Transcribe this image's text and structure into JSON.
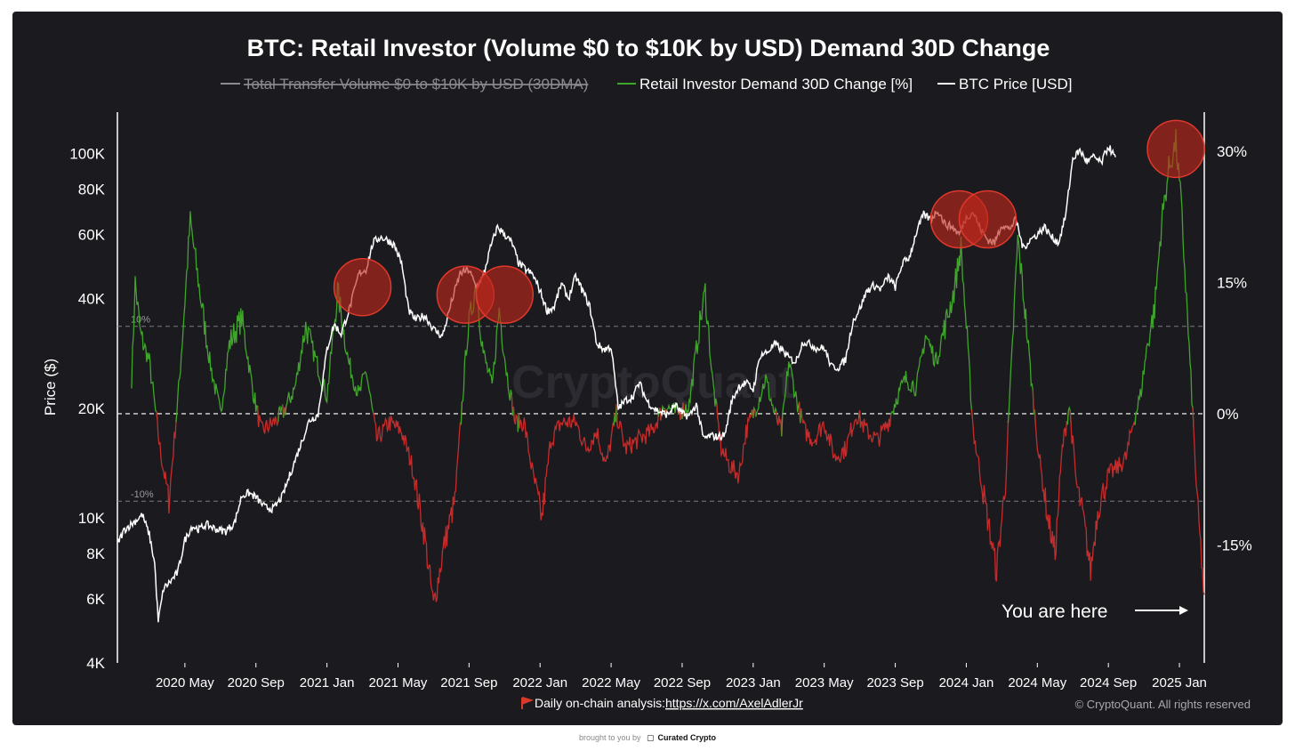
{
  "colors": {
    "background": "#1b1b1f",
    "green": "#3fa52b",
    "red": "#c42c2c",
    "price": "#ffffff",
    "disabled": "#8a8a90",
    "circle_fill": "#c0261c",
    "circle_stroke": "#e0382c"
  },
  "watermark": "CryptoQuant",
  "footer": {
    "flag_icon": "red-flag-icon",
    "label": "Daily on-chain analysis:",
    "link": "https://x.com/AxelAdlerJr",
    "copyright": "© CryptoQuant. All rights reserved"
  },
  "brought_by": {
    "prefix": "brought to you by",
    "logo_icon": "curated-crypto-logo-icon",
    "brand": "Curated Crypto"
  },
  "annotation": {
    "text": "You are here",
    "arrow_icon": "right-arrow-icon"
  },
  "chart_data": {
    "type": "line",
    "title": "BTC: Retail Investor (Volume $0 to $10K by USD) Demand 30D Change",
    "legend": [
      {
        "label": "Total Transfer Volume $0 to $10K by USD (30DMA)",
        "enabled": false
      },
      {
        "label": "Retail Investor Demand 30D Change [%]",
        "enabled": true
      },
      {
        "label": "BTC Price [USD]",
        "enabled": true
      }
    ],
    "ylabel_left": "Price ($)",
    "y_left_ticks": [
      "100K",
      "80K",
      "60K",
      "40K",
      "20K",
      "10K",
      "8K",
      "6K",
      "4K"
    ],
    "y_left_tick_values": [
      100000,
      80000,
      60000,
      40000,
      20000,
      10000,
      8000,
      6000,
      4000
    ],
    "y_left_range": [
      4000,
      130000
    ],
    "y_left_scale": "log",
    "y_right_ticks": [
      "30%",
      "15%",
      "0%",
      "-15%"
    ],
    "y_right_tick_values": [
      30,
      15,
      0,
      -15
    ],
    "y_right_range": [
      -28.5,
      34.5
    ],
    "reference_lines": [
      {
        "value": 10,
        "label": "10%"
      },
      {
        "value": 0,
        "label": ""
      },
      {
        "value": -10,
        "label": "-10%"
      }
    ],
    "x_ticks": [
      "2020 May",
      "2020 Sep",
      "2021 Jan",
      "2021 May",
      "2021 Sep",
      "2022 Jan",
      "2022 May",
      "2022 Sep",
      "2023 Jan",
      "2023 May",
      "2023 Sep",
      "2024 Jan",
      "2024 May",
      "2024 Sep",
      "2025 Jan"
    ],
    "x_tick_months": [
      4,
      8,
      12,
      16,
      20,
      24,
      28,
      32,
      36,
      40,
      44,
      48,
      52,
      56,
      60
    ],
    "x_range_months": [
      0.2,
      61.4
    ],
    "x_origin": "2020 Jan",
    "series": [
      {
        "name": "BTC Price [USD]",
        "axis": "left",
        "points": [
          [
            0.2,
            8500
          ],
          [
            0.6,
            9300
          ],
          [
            1.2,
            9800
          ],
          [
            1.6,
            10200
          ],
          [
            2.0,
            9000
          ],
          [
            2.3,
            7500
          ],
          [
            2.5,
            5200
          ],
          [
            2.8,
            6400
          ],
          [
            3.2,
            6700
          ],
          [
            3.6,
            7100
          ],
          [
            4.0,
            8700
          ],
          [
            4.4,
            9500
          ],
          [
            4.8,
            9300
          ],
          [
            5.2,
            9600
          ],
          [
            5.8,
            9300
          ],
          [
            6.3,
            9200
          ],
          [
            6.8,
            9700
          ],
          [
            7.2,
            11500
          ],
          [
            7.6,
            11700
          ],
          [
            8.0,
            11400
          ],
          [
            8.5,
            10700
          ],
          [
            9.0,
            10600
          ],
          [
            9.5,
            11500
          ],
          [
            10.0,
            13500
          ],
          [
            10.5,
            15800
          ],
          [
            11.0,
            18500
          ],
          [
            11.5,
            19200
          ],
          [
            12.0,
            29000
          ],
          [
            12.4,
            34000
          ],
          [
            12.8,
            32000
          ],
          [
            13.3,
            38000
          ],
          [
            13.8,
            47000
          ],
          [
            14.2,
            48000
          ],
          [
            14.6,
            57000
          ],
          [
            15.0,
            59000
          ],
          [
            15.4,
            58000
          ],
          [
            15.8,
            56000
          ],
          [
            16.2,
            50000
          ],
          [
            16.6,
            37000
          ],
          [
            17.0,
            35000
          ],
          [
            17.5,
            36000
          ],
          [
            18.0,
            33000
          ],
          [
            18.5,
            31500
          ],
          [
            19.0,
            39000
          ],
          [
            19.5,
            47000
          ],
          [
            20.0,
            48000
          ],
          [
            20.4,
            43000
          ],
          [
            20.8,
            46000
          ],
          [
            21.2,
            55000
          ],
          [
            21.6,
            63000
          ],
          [
            22.0,
            60000
          ],
          [
            22.4,
            57000
          ],
          [
            22.8,
            50000
          ],
          [
            23.2,
            48000
          ],
          [
            23.6,
            46500
          ],
          [
            24.0,
            42000
          ],
          [
            24.4,
            37000
          ],
          [
            24.8,
            38000
          ],
          [
            25.2,
            44000
          ],
          [
            25.6,
            40000
          ],
          [
            26.0,
            46000
          ],
          [
            26.4,
            42000
          ],
          [
            26.8,
            38000
          ],
          [
            27.2,
            30000
          ],
          [
            27.6,
            29000
          ],
          [
            28.0,
            29500
          ],
          [
            28.4,
            20000
          ],
          [
            28.8,
            21000
          ],
          [
            29.2,
            21500
          ],
          [
            29.6,
            23500
          ],
          [
            30.0,
            21000
          ],
          [
            30.4,
            20000
          ],
          [
            30.8,
            19500
          ],
          [
            31.2,
            19200
          ],
          [
            31.6,
            20500
          ],
          [
            32.0,
            19300
          ],
          [
            32.4,
            19000
          ],
          [
            32.8,
            20500
          ],
          [
            33.2,
            16500
          ],
          [
            33.6,
            16800
          ],
          [
            34.0,
            16700
          ],
          [
            34.4,
            16900
          ],
          [
            34.8,
            21000
          ],
          [
            35.2,
            23000
          ],
          [
            35.6,
            23500
          ],
          [
            36.0,
            22500
          ],
          [
            36.4,
            28000
          ],
          [
            36.8,
            28500
          ],
          [
            37.2,
            30000
          ],
          [
            37.6,
            29000
          ],
          [
            38.0,
            27500
          ],
          [
            38.4,
            26800
          ],
          [
            38.8,
            30500
          ],
          [
            39.2,
            30000
          ],
          [
            39.6,
            29200
          ],
          [
            40.0,
            29300
          ],
          [
            40.4,
            26000
          ],
          [
            40.8,
            25900
          ],
          [
            41.2,
            27200
          ],
          [
            41.6,
            34500
          ],
          [
            42.0,
            37500
          ],
          [
            42.4,
            42000
          ],
          [
            42.8,
            43500
          ],
          [
            43.2,
            42500
          ],
          [
            43.6,
            46000
          ],
          [
            44.0,
            43000
          ],
          [
            44.4,
            50000
          ],
          [
            44.8,
            52000
          ],
          [
            45.2,
            61000
          ],
          [
            45.6,
            68000
          ],
          [
            46.0,
            66000
          ],
          [
            46.4,
            70000
          ],
          [
            46.8,
            64000
          ],
          [
            47.2,
            63000
          ],
          [
            47.6,
            60000
          ],
          [
            48.0,
            67000
          ],
          [
            48.4,
            69000
          ],
          [
            48.8,
            62000
          ],
          [
            49.2,
            58000
          ],
          [
            49.6,
            57000
          ],
          [
            50.0,
            64000
          ],
          [
            50.4,
            62000
          ],
          [
            50.8,
            66000
          ],
          [
            51.2,
            55000
          ],
          [
            51.6,
            58000
          ],
          [
            52.0,
            60000
          ],
          [
            52.4,
            63000
          ],
          [
            52.8,
            59000
          ],
          [
            53.2,
            57000
          ],
          [
            53.6,
            68000
          ],
          [
            54.0,
            97000
          ],
          [
            54.4,
            102000
          ],
          [
            54.8,
            95000
          ],
          [
            55.2,
            98000
          ],
          [
            55.6,
            94000
          ],
          [
            56.0,
            105000
          ],
          [
            56.4,
            97000
          ]
        ]
      }
    ]
  }
}
